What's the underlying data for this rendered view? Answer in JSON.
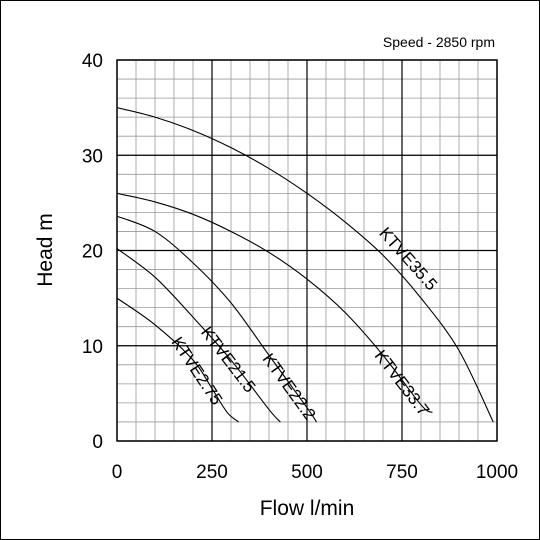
{
  "chart_data": {
    "type": "line",
    "note": "Speed - 2850 rpm",
    "xlabel": "Flow l/min",
    "ylabel": "Head m",
    "xlim": [
      0,
      1000
    ],
    "ylim": [
      0,
      40
    ],
    "xticks": [
      0,
      250,
      500,
      750,
      1000
    ],
    "yticks": [
      0,
      10,
      20,
      30,
      40
    ],
    "minor_grid_x": 50,
    "minor_grid_y": 2,
    "grid": true,
    "series": [
      {
        "name": "KTVE2.75",
        "x": [
          0,
          100,
          200,
          250,
          290,
          320
        ],
        "y": [
          15,
          12.2,
          8.5,
          5.5,
          3.0,
          2.0
        ]
      },
      {
        "name": "KTVE21.5",
        "x": [
          0,
          100,
          200,
          300,
          400,
          430
        ],
        "y": [
          20.2,
          17.2,
          13,
          8.5,
          3.3,
          2.0
        ]
      },
      {
        "name": "KTVE22.2",
        "x": [
          0,
          100,
          200,
          300,
          400,
          500,
          525
        ],
        "y": [
          23.6,
          22,
          18.7,
          14.5,
          9,
          3.5,
          2.0
        ]
      },
      {
        "name": "KTVE33.7",
        "x": [
          0,
          100,
          200,
          300,
          400,
          500,
          600,
          700,
          800,
          830
        ],
        "y": [
          26,
          25.1,
          23.8,
          22,
          19.8,
          17,
          13.5,
          9,
          3.8,
          3.0
        ]
      },
      {
        "name": "KTVE35.5",
        "x": [
          0,
          100,
          200,
          300,
          400,
          500,
          600,
          700,
          800,
          900,
          990
        ],
        "y": [
          35,
          34,
          32.6,
          30.8,
          28.6,
          26,
          23,
          19.5,
          15,
          9.5,
          2.0
        ]
      }
    ]
  }
}
